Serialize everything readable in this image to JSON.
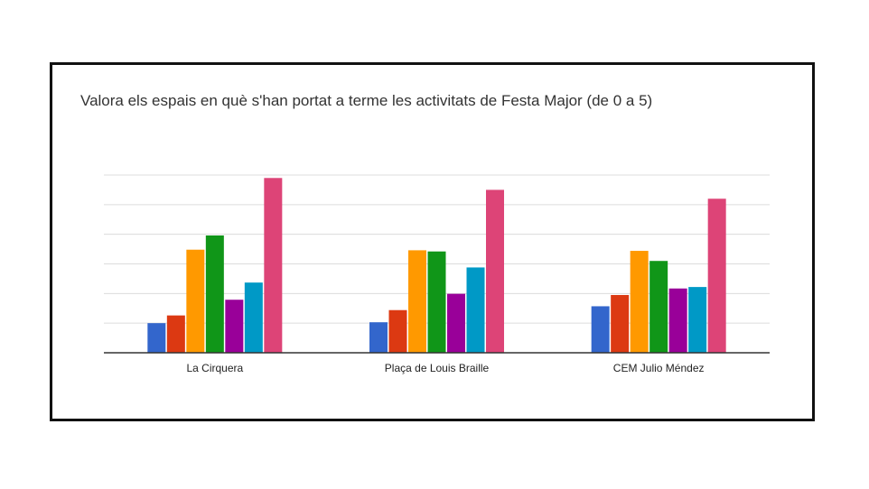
{
  "chart_data": {
    "type": "bar",
    "title": "Valora els espais en què s'han portat a terme les activitats de Festa Major (de 0 a 5)",
    "categories": [
      "La Cirquera",
      "Plaça de Louis Braille",
      "CEM Julio Méndez"
    ],
    "series": [
      {
        "values": [
          10,
          10.3,
          15.7
        ]
      },
      {
        "values": [
          12.6,
          14.4,
          19.5
        ]
      },
      {
        "values": [
          34.8,
          34.6,
          34.4
        ]
      },
      {
        "values": [
          39.6,
          34.2,
          31.0
        ]
      },
      {
        "values": [
          17.9,
          19.9,
          21.7
        ]
      },
      {
        "values": [
          23.7,
          28.8,
          22.2
        ]
      },
      {
        "values": [
          59.0,
          55.0,
          52.0
        ]
      }
    ],
    "colors": [
      "#3366cc",
      "#dc3912",
      "#ff9900",
      "#109618",
      "#990099",
      "#0099c6",
      "#dd4477"
    ],
    "ylim": [
      0,
      60
    ],
    "gridlines": 6,
    "xlabel": "",
    "ylabel": "",
    "grid": true,
    "legend": "none"
  }
}
